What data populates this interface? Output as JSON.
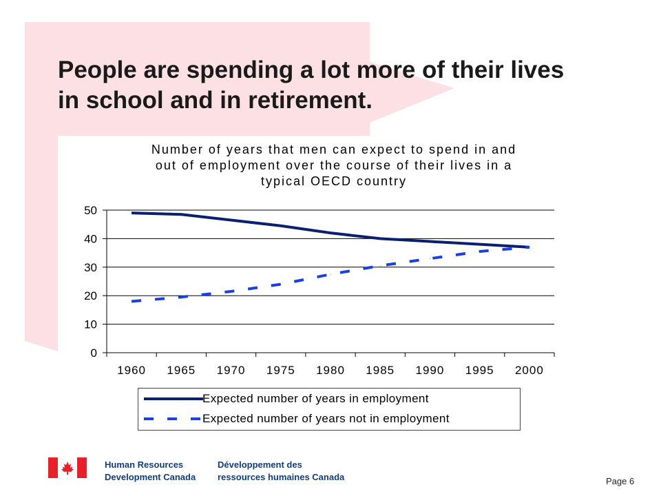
{
  "slide": {
    "title_line1": "People are spending a lot more of their lives",
    "title_line2": "in school and in retirement."
  },
  "chart_data": {
    "type": "line",
    "title_line1": "Number of years that men can expect to spend in and",
    "title_line2": "out of employment over the course of their lives in a",
    "title_line3": "typical OECD country",
    "x": [
      "1960",
      "1965",
      "1970",
      "1975",
      "1980",
      "1985",
      "1990",
      "1995",
      "2000"
    ],
    "y_ticks": [
      "0",
      "10",
      "20",
      "30",
      "40",
      "50"
    ],
    "ylim": [
      0,
      50
    ],
    "grid": "horizontal",
    "legend_placement": "bottom",
    "series": [
      {
        "name": "Expected number of years in employment",
        "style": "solid",
        "color": "#0a1f6e",
        "values": [
          49,
          48.5,
          46.5,
          44.5,
          42,
          40,
          39,
          38,
          37
        ]
      },
      {
        "name": "Expected number of years not in employment",
        "style": "dashed",
        "color": "#1c3fe0",
        "values": [
          18,
          19.5,
          21.5,
          24,
          27.5,
          30.5,
          33,
          35.5,
          37
        ]
      }
    ]
  },
  "footer": {
    "en_line1": "Human Resources",
    "en_line2": "Development Canada",
    "fr_line1": "Développement des",
    "fr_line2": "ressources humaines Canada",
    "page": "Page 6"
  },
  "colors": {
    "banner": "#fde0e4",
    "gridline": "#000000",
    "footer_text": "#123c7a",
    "flag_red": "#e8202a"
  }
}
